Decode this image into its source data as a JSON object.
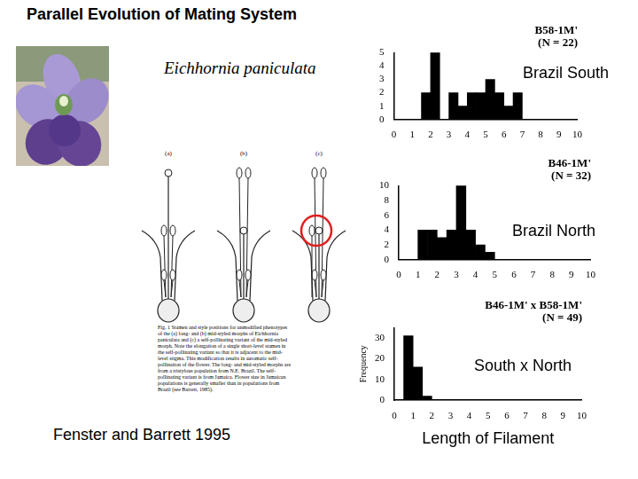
{
  "title": "Parallel Evolution of Mating System",
  "species": "Eichhornia paniculata",
  "citation": "Fenster and Barrett 1995",
  "figure": {
    "panel_labels": [
      "(a)",
      "(b)",
      "(c)"
    ],
    "caption": "Fig. 1 Stamen and style positions for unmodified phenotypes of the (a) long- and (b) mid-styled morphs of Eichhornia paniculata and (c) a self-pollinating variant of the mid-styled morph. Note the elongation of a single short-level stamen in the self-pollinating variant so that it is adjacent to the mid-level stigma. This modification results in automatic self-pollination of the flower. The long- and mid-styled morphs are from a tristylous population from N.E. Brazil. The self-pollinating variant is from Jamaica. Flower size in Jamaican populations is generally smaller than in populations from Brazil (see Barrett, 1985)."
  },
  "chart_data": [
    {
      "type": "histogram",
      "title": "B58-1M'\n(N = 22)",
      "annotation": "Brazil South",
      "bins": [
        0,
        0.5,
        1,
        1.5,
        2,
        2.5,
        3,
        3.5,
        4,
        4.5,
        5,
        5.5,
        6,
        6.5,
        7,
        7.5,
        8,
        8.5,
        9,
        9.5,
        10
      ],
      "counts": [
        0,
        0,
        0,
        2,
        5,
        0,
        2,
        1,
        2,
        2,
        3,
        2,
        1,
        2,
        0,
        0,
        0,
        0,
        0,
        0
      ],
      "color": "#000000",
      "xlim": [
        0,
        10
      ],
      "xticks": [
        0,
        1,
        2,
        3,
        4,
        5,
        6,
        7,
        8,
        9,
        10
      ],
      "ylim": [
        0,
        5
      ],
      "yticks": [
        0,
        1,
        2,
        3,
        4,
        5
      ],
      "grid": false
    },
    {
      "type": "histogram",
      "title": "B46-1M'\n(N = 32)",
      "annotation": "Brazil North",
      "bins": [
        0,
        0.5,
        1,
        1.5,
        2,
        2.5,
        3,
        3.5,
        4,
        4.5,
        5,
        5.5,
        6,
        6.5,
        7,
        7.5,
        8,
        8.5,
        9,
        9.5,
        10
      ],
      "counts": [
        0,
        0,
        4,
        4,
        3,
        4,
        10,
        4,
        2,
        1,
        0,
        0,
        0,
        0,
        0,
        0,
        0,
        0,
        0,
        0
      ],
      "color": "#000000",
      "xlim": [
        0,
        10
      ],
      "xticks": [
        0,
        1,
        2,
        3,
        4,
        5,
        6,
        7,
        8,
        9,
        10
      ],
      "ylim": [
        0,
        10
      ],
      "yticks": [
        0,
        2,
        4,
        6,
        8,
        10
      ],
      "grid": false
    },
    {
      "type": "histogram",
      "title": "B46-1M' x B58-1M'\n(N = 49)",
      "annotation": "South x North",
      "xlabel": "Length of Filament",
      "ylabel": "Frequency",
      "bins": [
        0,
        0.5,
        1,
        1.5,
        2,
        2.5,
        3,
        3.5,
        4,
        4.5,
        5,
        5.5,
        6,
        6.5,
        7,
        7.5,
        8,
        8.5,
        9,
        9.5,
        10
      ],
      "counts": [
        0,
        31,
        16,
        2,
        0,
        0,
        0,
        0,
        0,
        0,
        0,
        0,
        0,
        0,
        0,
        0,
        0,
        0,
        0,
        0
      ],
      "color": "#000000",
      "xlim": [
        0,
        10
      ],
      "xticks": [
        0,
        1,
        2,
        3,
        4,
        5,
        6,
        7,
        8,
        9,
        10
      ],
      "ylim": [
        0,
        35
      ],
      "yticks": [
        0,
        10,
        20,
        30
      ],
      "grid": false
    }
  ]
}
